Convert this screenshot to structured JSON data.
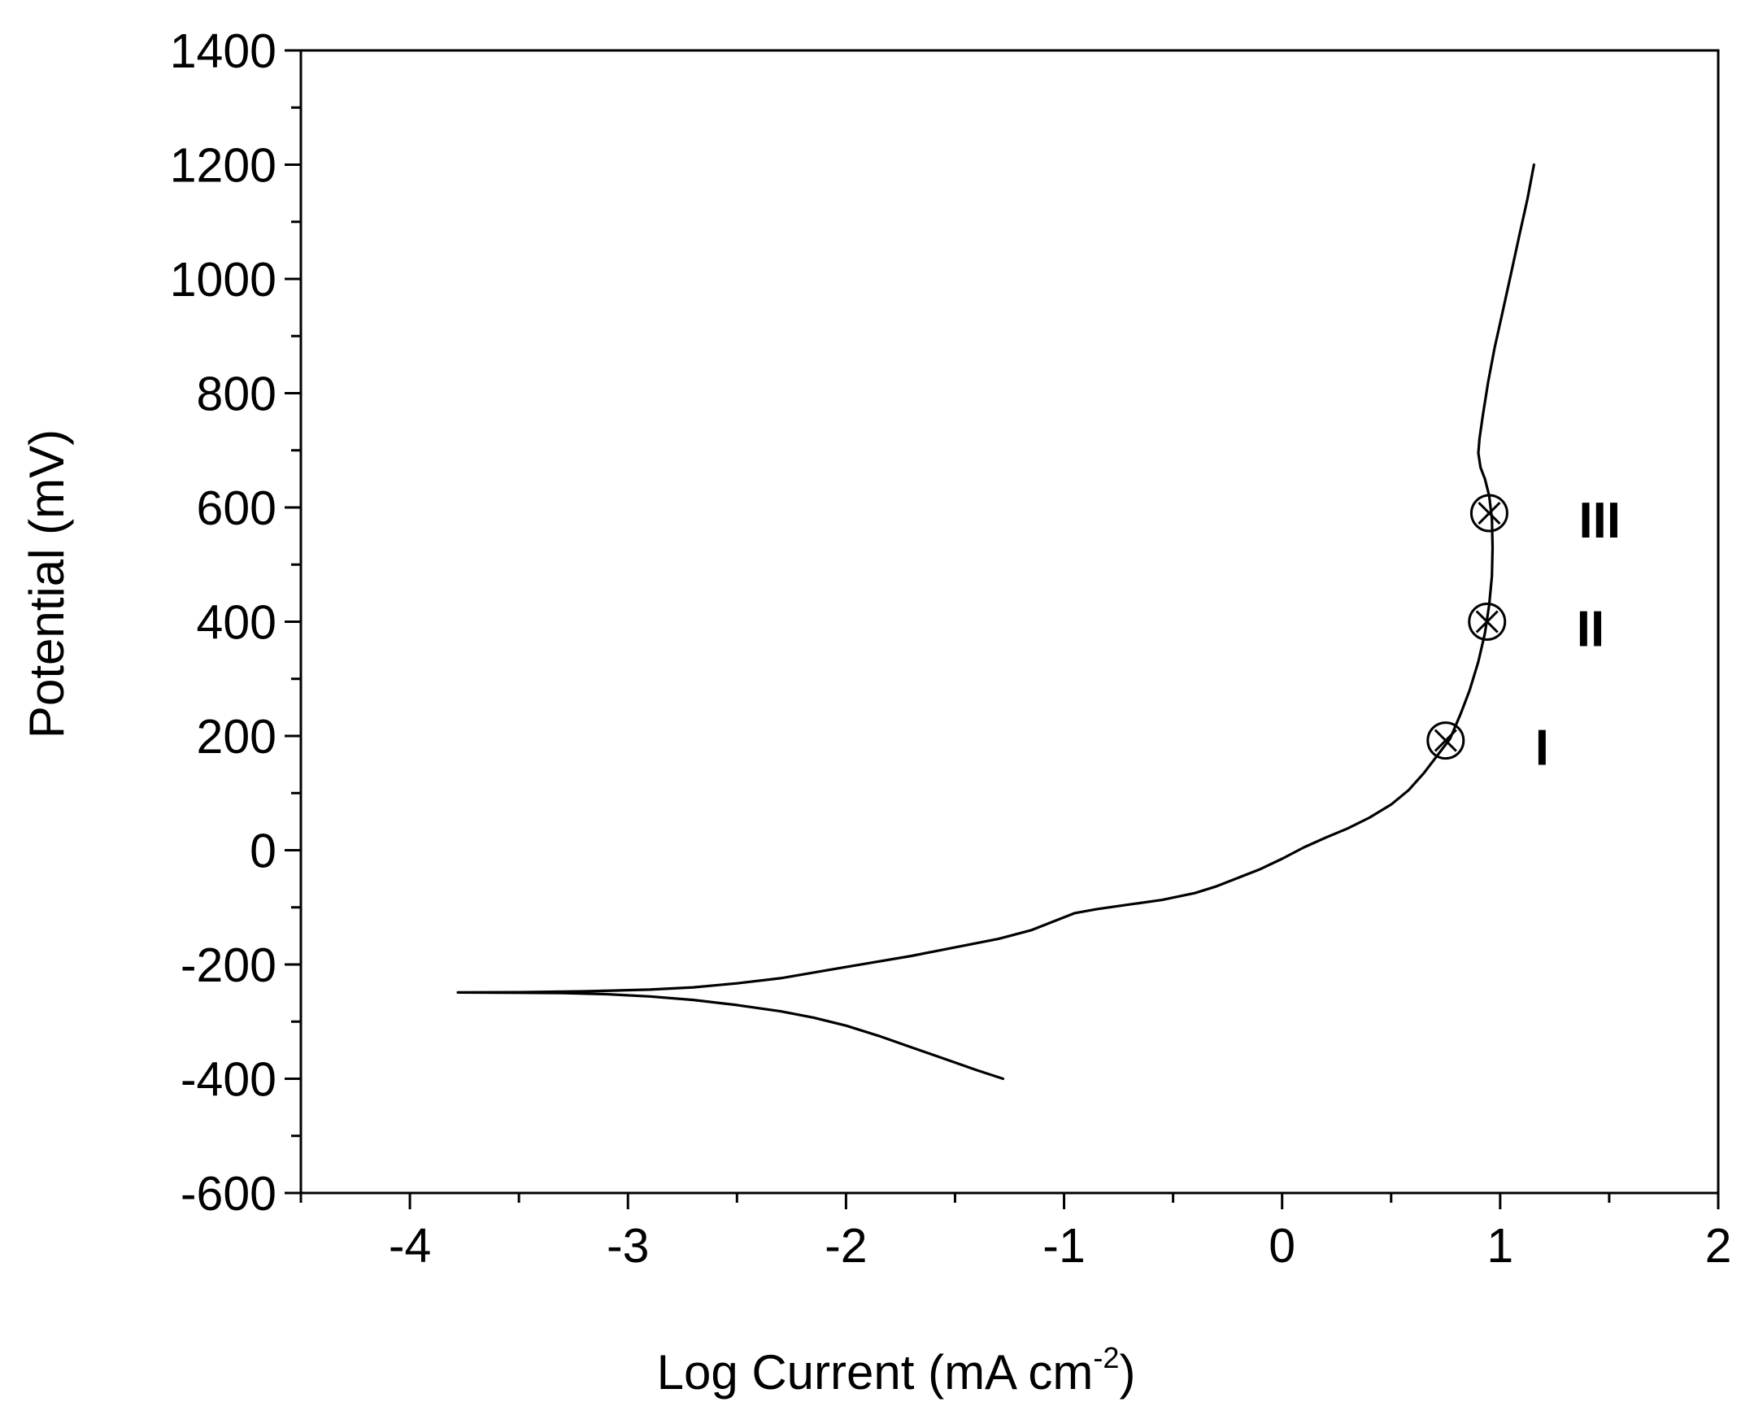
{
  "chart_data": {
    "type": "line",
    "title": "",
    "xlabel": {
      "main": "Log Current (mA cm",
      "superscript": "-2",
      "suffix": ")"
    },
    "ylabel": "Potential (mV)",
    "xlim": [
      -4.5,
      2
    ],
    "ylim": [
      -600,
      1400
    ],
    "x_ticks": [
      -4,
      -3,
      -2,
      -1,
      0,
      1,
      2
    ],
    "x_tick_labels": [
      "-4",
      "-3",
      "-2",
      "-1",
      "0",
      "1",
      "2"
    ],
    "x_minor_ticks": [
      -4.5,
      -3.5,
      -2.5,
      -1.5,
      -0.5,
      0.5,
      1.5
    ],
    "y_ticks": [
      -600,
      -400,
      -200,
      0,
      200,
      400,
      600,
      800,
      1000,
      1200,
      1400
    ],
    "y_tick_labels": [
      "-600",
      "-400",
      "-200",
      "0",
      "200",
      "400",
      "600",
      "800",
      "1000",
      "1200",
      "1400"
    ],
    "y_minor_ticks": [
      -500,
      -300,
      -100,
      100,
      300,
      500,
      700,
      900,
      1100,
      1300
    ],
    "grid": false,
    "legend": "none",
    "line_color": "#000000",
    "series": [
      {
        "points": [
          [
            -1.28,
            -400
          ],
          [
            -1.4,
            -385
          ],
          [
            -1.55,
            -365
          ],
          [
            -1.7,
            -345
          ],
          [
            -1.85,
            -325
          ],
          [
            -2.0,
            -307
          ],
          [
            -2.15,
            -293
          ],
          [
            -2.3,
            -282
          ],
          [
            -2.5,
            -271
          ],
          [
            -2.7,
            -262
          ],
          [
            -2.9,
            -256
          ],
          [
            -3.1,
            -252
          ],
          [
            -3.3,
            -250
          ],
          [
            -3.5,
            -249.5
          ],
          [
            -3.78,
            -249
          ],
          [
            -3.5,
            -248.5
          ],
          [
            -3.2,
            -247
          ],
          [
            -2.9,
            -244
          ],
          [
            -2.7,
            -240
          ],
          [
            -2.5,
            -233
          ],
          [
            -2.3,
            -224
          ],
          [
            -2.1,
            -211
          ],
          [
            -1.9,
            -198
          ],
          [
            -1.7,
            -185
          ],
          [
            -1.5,
            -170
          ],
          [
            -1.3,
            -155
          ],
          [
            -1.15,
            -140
          ],
          [
            -1.05,
            -125
          ],
          [
            -0.95,
            -110
          ],
          [
            -0.85,
            -103
          ],
          [
            -0.7,
            -95
          ],
          [
            -0.55,
            -87
          ],
          [
            -0.4,
            -75
          ],
          [
            -0.3,
            -63
          ],
          [
            -0.2,
            -48
          ],
          [
            -0.1,
            -33
          ],
          [
            0.0,
            -15
          ],
          [
            0.1,
            5
          ],
          [
            0.2,
            22
          ],
          [
            0.3,
            38
          ],
          [
            0.4,
            57
          ],
          [
            0.5,
            80
          ],
          [
            0.58,
            105
          ],
          [
            0.65,
            135
          ],
          [
            0.71,
            165
          ],
          [
            0.77,
            195
          ],
          [
            0.82,
            240
          ],
          [
            0.86,
            280
          ],
          [
            0.9,
            330
          ],
          [
            0.93,
            380
          ],
          [
            0.95,
            430
          ],
          [
            0.962,
            480
          ],
          [
            0.965,
            530
          ],
          [
            0.962,
            580
          ],
          [
            0.95,
            620
          ],
          [
            0.93,
            650
          ],
          [
            0.91,
            670
          ],
          [
            0.9,
            695
          ],
          [
            0.905,
            720
          ],
          [
            0.92,
            760
          ],
          [
            0.945,
            820
          ],
          [
            0.975,
            880
          ],
          [
            1.01,
            940
          ],
          [
            1.05,
            1010
          ],
          [
            1.09,
            1080
          ],
          [
            1.125,
            1140
          ],
          [
            1.155,
            1200
          ]
        ]
      }
    ],
    "markers": [
      {
        "label": "I",
        "x": 0.75,
        "y": 192
      },
      {
        "label": "II",
        "x": 0.94,
        "y": 400
      },
      {
        "label": "III",
        "x": 0.95,
        "y": 590
      }
    ]
  }
}
